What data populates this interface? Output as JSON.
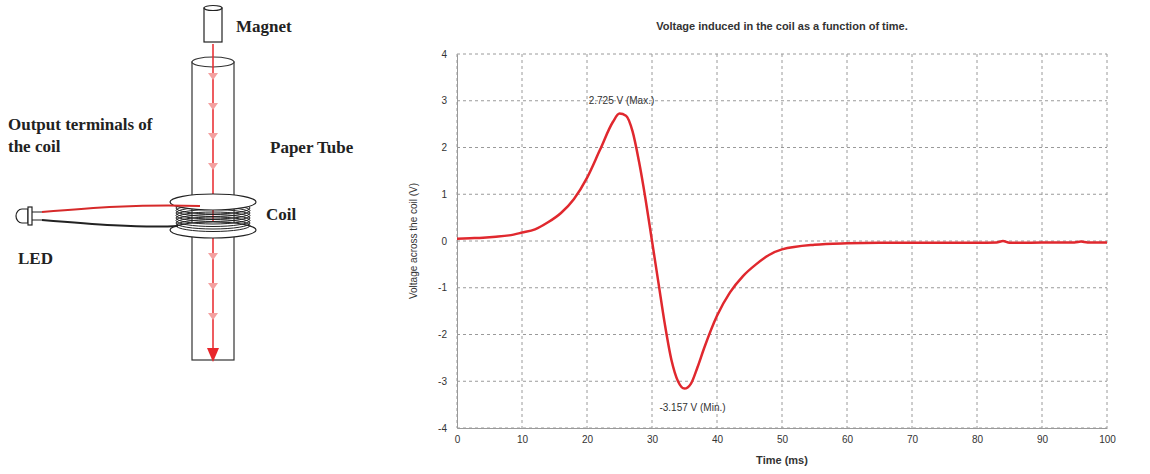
{
  "chart_data": {
    "type": "line",
    "title": "Voltage induced in the coil as a function of time.",
    "x_label": "Time (ms)",
    "y_label": "Voltage across the coil (V)",
    "x": [
      0,
      2,
      4,
      6,
      8,
      10,
      12,
      14,
      16,
      18,
      20,
      22,
      24,
      25,
      26,
      27,
      28,
      29,
      30,
      31,
      32,
      33,
      34,
      35,
      36,
      37,
      38,
      40,
      42,
      44,
      46,
      48,
      50,
      55,
      60,
      65,
      70,
      75,
      80,
      83,
      84,
      85,
      90,
      95,
      96,
      97,
      100
    ],
    "values": [
      0.05,
      0.06,
      0.07,
      0.09,
      0.12,
      0.18,
      0.25,
      0.4,
      0.6,
      0.9,
      1.35,
      1.95,
      2.55,
      2.725,
      2.68,
      2.35,
      1.7,
      0.9,
      0.0,
      -0.9,
      -1.8,
      -2.55,
      -3.0,
      -3.157,
      -3.05,
      -2.7,
      -2.3,
      -1.6,
      -1.1,
      -0.75,
      -0.5,
      -0.3,
      -0.18,
      -0.08,
      -0.05,
      -0.04,
      -0.04,
      -0.04,
      -0.04,
      -0.03,
      0.0,
      -0.04,
      -0.03,
      -0.03,
      -0.01,
      -0.03,
      -0.03
    ],
    "color": "#e0282e",
    "xlim": [
      0,
      100
    ],
    "xticks": [
      0,
      10,
      20,
      30,
      40,
      50,
      60,
      70,
      80,
      90,
      100
    ],
    "ylim": [
      -4,
      4
    ],
    "yticks": [
      -4,
      -3,
      -2,
      -1,
      0,
      1,
      2,
      3,
      4
    ],
    "grid": true,
    "annotations": [
      {
        "text": "2.725 V (Max.)",
        "x": 25,
        "y": 2.725
      },
      {
        "text": "-3.157 V (Min.)",
        "x": 35,
        "y": -3.157
      }
    ]
  },
  "diagram": {
    "magnet": "Magnet",
    "paper_tube": "Paper Tube",
    "output": "Output terminals of the coil",
    "coil": "Coil",
    "led": "LED"
  }
}
